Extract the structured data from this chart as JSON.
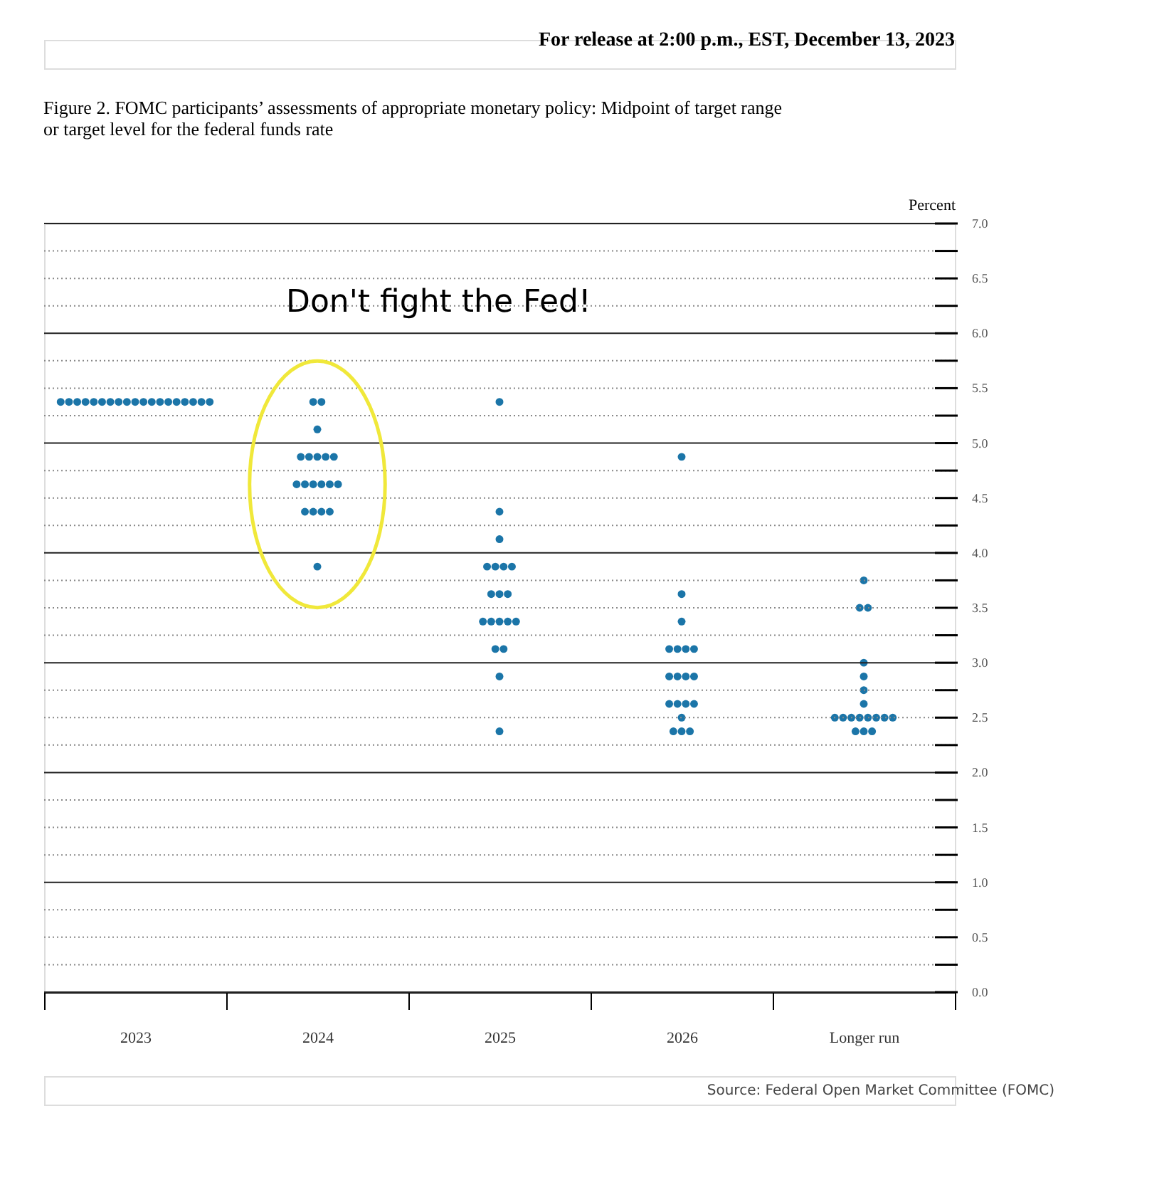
{
  "chart_data": {
    "type": "scatter",
    "title": "Figure 2.  FOMC participants’ assessments of appropriate monetary policy:  Midpoint of target range or target level for the federal funds rate",
    "ylabel": "Percent",
    "categories": [
      "2023",
      "2024",
      "2025",
      "2026",
      "Longer run"
    ],
    "series": [
      {
        "color": "#1b75a8",
        "values": [
          5.375,
          5.375,
          5.375,
          4.875,
          3.75
        ]
      },
      {
        "color": "#1b75a8",
        "values": [
          5.375,
          5.375,
          4.375,
          3.625,
          3.5
        ]
      },
      {
        "color": "#1b75a8",
        "values": [
          5.375,
          5.125,
          4.125,
          3.375,
          3.5
        ]
      },
      {
        "color": "#1b75a8",
        "values": [
          5.375,
          4.875,
          3.875,
          3.125,
          3.0
        ]
      },
      {
        "color": "#1b75a8",
        "values": [
          5.375,
          4.875,
          3.875,
          3.125,
          2.875
        ]
      },
      {
        "color": "#1b75a8",
        "values": [
          5.375,
          4.875,
          3.875,
          3.125,
          2.75
        ]
      },
      {
        "color": "#1b75a8",
        "values": [
          5.375,
          4.875,
          3.875,
          3.125,
          2.625
        ]
      },
      {
        "color": "#1b75a8",
        "values": [
          5.375,
          4.875,
          3.625,
          2.875,
          2.5
        ]
      },
      {
        "color": "#1b75a8",
        "values": [
          5.375,
          4.625,
          3.625,
          2.875,
          2.5
        ]
      },
      {
        "color": "#1b75a8",
        "values": [
          5.375,
          4.625,
          3.625,
          2.875,
          2.5
        ]
      },
      {
        "color": "#1b75a8",
        "values": [
          5.375,
          4.625,
          3.375,
          2.875,
          2.5
        ]
      },
      {
        "color": "#1b75a8",
        "values": [
          5.375,
          4.625,
          3.375,
          2.625,
          2.5
        ]
      },
      {
        "color": "#1b75a8",
        "values": [
          5.375,
          4.625,
          3.375,
          2.625,
          2.5
        ]
      },
      {
        "color": "#1b75a8",
        "values": [
          5.375,
          4.625,
          3.375,
          2.625,
          2.5
        ]
      },
      {
        "color": "#1b75a8",
        "values": [
          5.375,
          4.375,
          3.375,
          2.625,
          2.5
        ]
      },
      {
        "color": "#1b75a8",
        "values": [
          5.375,
          4.375,
          3.125,
          2.5,
          2.375
        ]
      },
      {
        "color": "#1b75a8",
        "values": [
          5.375,
          4.375,
          3.125,
          2.375,
          2.375
        ]
      },
      {
        "color": "#1b75a8",
        "values": [
          5.375,
          4.375,
          2.875,
          2.375,
          2.375
        ]
      },
      {
        "color": "#1b75a8",
        "values": [
          5.375,
          3.875,
          2.375,
          2.375,
          null
        ]
      }
    ],
    "ylim": [
      0,
      7
    ],
    "yticks": [
      {
        "value": 0,
        "label": "0.0"
      },
      {
        "value": 0.25,
        "label": null
      },
      {
        "value": 0.5,
        "label": "0.5"
      },
      {
        "value": 0.75,
        "label": null
      },
      {
        "value": 1,
        "label": "1.0"
      },
      {
        "value": 1.25,
        "label": null
      },
      {
        "value": 1.5,
        "label": "1.5"
      },
      {
        "value": 1.75,
        "label": null
      },
      {
        "value": 2,
        "label": "2.0"
      },
      {
        "value": 2.25,
        "label": null
      },
      {
        "value": 2.5,
        "label": "2.5"
      },
      {
        "value": 2.75,
        "label": null
      },
      {
        "value": 3,
        "label": "3.0"
      },
      {
        "value": 3.25,
        "label": null
      },
      {
        "value": 3.5,
        "label": "3.5"
      },
      {
        "value": 3.75,
        "label": null
      },
      {
        "value": 4,
        "label": "4.0"
      },
      {
        "value": 4.25,
        "label": null
      },
      {
        "value": 4.5,
        "label": "4.5"
      },
      {
        "value": 4.75,
        "label": null
      },
      {
        "value": 5,
        "label": "5.0"
      },
      {
        "value": 5.25,
        "label": null
      },
      {
        "value": 5.5,
        "label": "5.5"
      },
      {
        "value": 5.75,
        "label": null
      },
      {
        "value": 6,
        "label": "6.0"
      },
      {
        "value": 6.25,
        "label": null
      },
      {
        "value": 6.5,
        "label": "6.5"
      },
      {
        "value": 6.75,
        "label": null
      },
      {
        "value": 7,
        "label": "7.0"
      }
    ],
    "grid": "y",
    "marker": "circle",
    "annotations": [
      "For release at 2:00 p.m., EST, December 13, 2023",
      "Don't fight the Fed!",
      "Source: Federal Open Market Committee (FOMC)"
    ]
  }
}
